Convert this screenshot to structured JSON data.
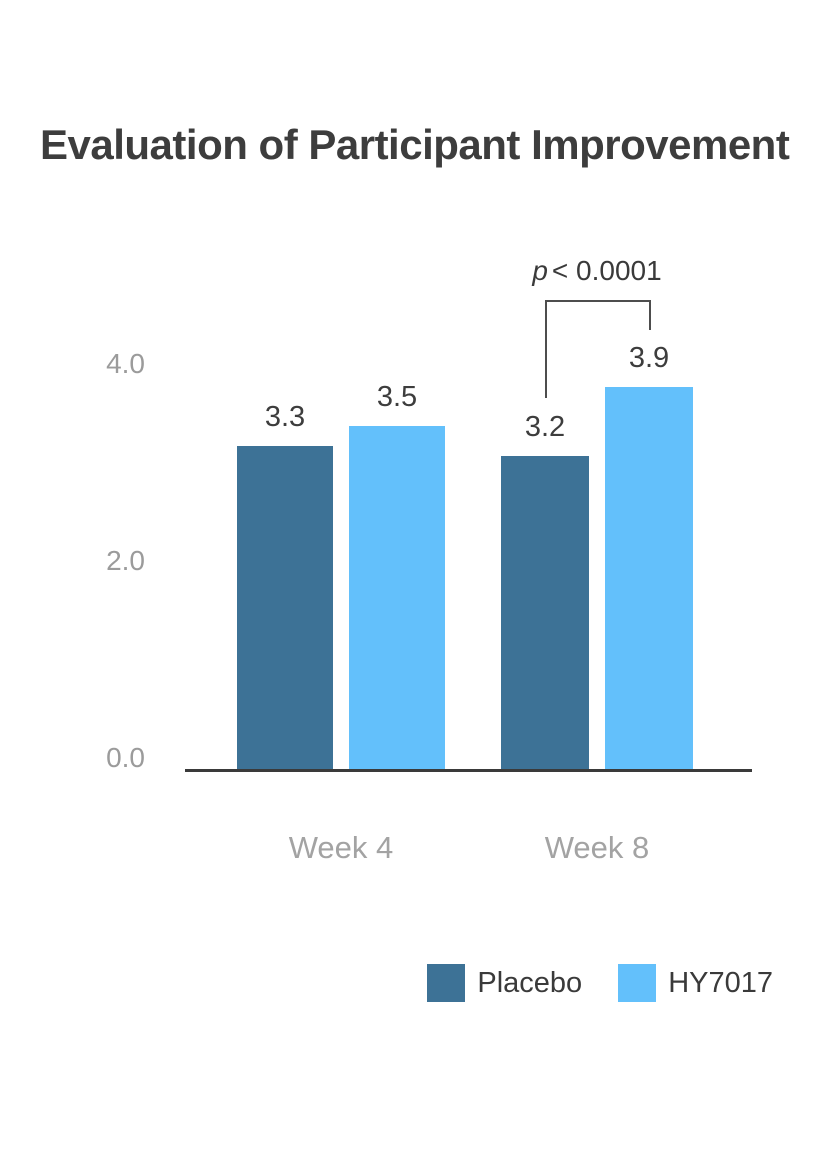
{
  "chart_data": {
    "type": "bar",
    "title": "Evaluation of Participant Improvement",
    "categories": [
      "Week 4",
      "Week 8"
    ],
    "series": [
      {
        "name": "Placebo",
        "color": "#3d7296",
        "values": [
          3.3,
          3.2
        ]
      },
      {
        "name": "HY7017",
        "color": "#63c0fb",
        "values": [
          3.5,
          3.9
        ]
      }
    ],
    "value_label_decimals": 1,
    "y_ticks": [
      "0.0",
      "2.0",
      "4.0"
    ],
    "ylim": [
      0,
      4
    ],
    "grid": false,
    "legend_position": "bottom-right",
    "annotation": {
      "symbol": "p",
      "comparison": "< 0.0001",
      "text": "p < 0.0001",
      "applies_to": "Week 8"
    },
    "colors": {
      "title_text": "#3d3d3d",
      "value_label_text": "#3d3d3d",
      "y_tick_text": "#9b9b9b",
      "category_text": "#a3a3a3",
      "axis_line": "#3a3a3a",
      "bracket_line": "#4d4d4d",
      "background": "#ffffff"
    }
  }
}
